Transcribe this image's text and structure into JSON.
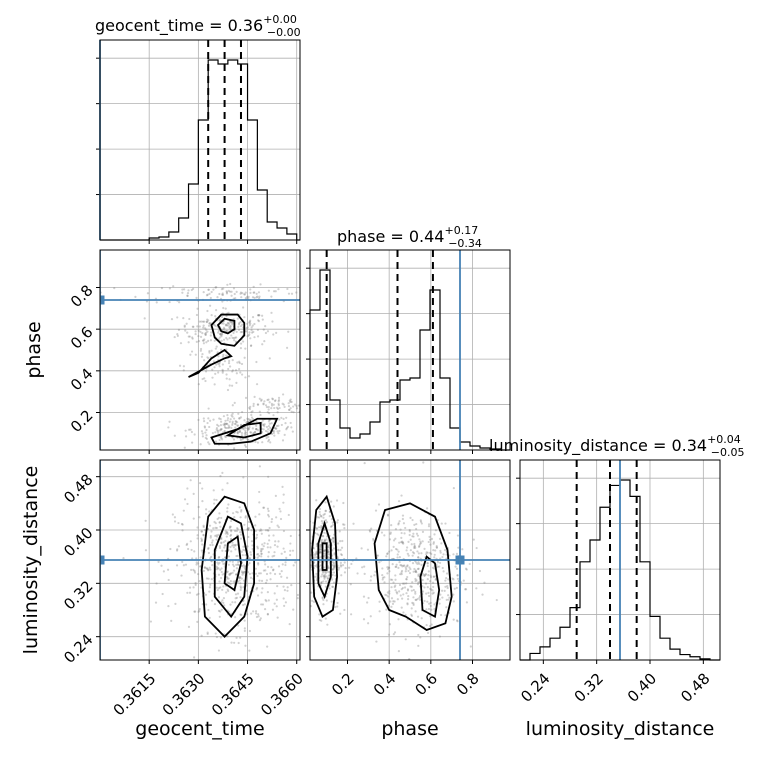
{
  "chart_data": {
    "type": "corner",
    "parameters": [
      "geocent_time",
      "phase",
      "luminosity_distance"
    ],
    "truth": {
      "geocent_time": 0.36,
      "phase": 0.74,
      "luminosity_distance": 0.355
    },
    "titles": [
      {
        "name": "geocent_time",
        "median": "0.36",
        "plus": "+0.00",
        "minus": "−0.00"
      },
      {
        "name": "phase",
        "median": "0.44",
        "plus": "+0.17",
        "minus": "−0.34"
      },
      {
        "name": "luminosity_distance",
        "median": "0.34",
        "plus": "+0.04",
        "minus": "−0.05"
      }
    ],
    "ranges": {
      "geocent_time": [
        0.36,
        0.3661
      ],
      "phase": [
        0.02,
        0.98
      ],
      "luminosity_distance": [
        0.205,
        0.505
      ]
    },
    "ticks": {
      "geocent_time": {
        "values": [
          0.3615,
          0.363,
          0.3645,
          0.366
        ],
        "labels": [
          "0.3615",
          "0.3630",
          "0.3645",
          "0.3660"
        ]
      },
      "phase": {
        "values": [
          0.2,
          0.4,
          0.6,
          0.8
        ],
        "labels": [
          "0.2",
          "0.4",
          "0.6",
          "0.8"
        ]
      },
      "luminosity_distance": {
        "values": [
          0.24,
          0.32,
          0.4,
          0.48
        ],
        "labels": [
          "0.24",
          "0.32",
          "0.40",
          "0.48"
        ]
      }
    },
    "histograms": {
      "geocent_time": {
        "edges": [
          0.36,
          0.3603,
          0.3606,
          0.3609,
          0.3612,
          0.3615,
          0.3618,
          0.3621,
          0.3624,
          0.3627,
          0.363,
          0.3633,
          0.3636,
          0.3639,
          0.3642,
          0.3645,
          0.3648,
          0.3651,
          0.3654,
          0.3657,
          0.366,
          0.3661
        ],
        "counts": [
          0,
          0,
          0,
          0,
          0,
          2,
          3,
          8,
          22,
          56,
          120,
          180,
          176,
          180,
          176,
          120,
          50,
          18,
          12,
          6,
          0
        ],
        "quantiles": [
          0.3633,
          0.3638,
          0.3643
        ]
      },
      "phase": {
        "edges": [
          0.02,
          0.068,
          0.116,
          0.164,
          0.212,
          0.26,
          0.308,
          0.356,
          0.404,
          0.452,
          0.5,
          0.548,
          0.596,
          0.644,
          0.692,
          0.74,
          0.788,
          0.836,
          0.884,
          0.932,
          0.98
        ],
        "counts": [
          140,
          180,
          50,
          22,
          12,
          16,
          28,
          48,
          50,
          70,
          72,
          120,
          160,
          72,
          22,
          8,
          4,
          2,
          1,
          0
        ],
        "quantiles": [
          0.1,
          0.44,
          0.61
        ]
      },
      "luminosity_distance": {
        "edges": [
          0.205,
          0.22,
          0.235,
          0.25,
          0.265,
          0.28,
          0.295,
          0.31,
          0.325,
          0.34,
          0.355,
          0.37,
          0.385,
          0.4,
          0.415,
          0.43,
          0.445,
          0.46,
          0.475,
          0.49,
          0.505
        ],
        "counts": [
          0,
          6,
          12,
          20,
          30,
          48,
          90,
          110,
          140,
          160,
          165,
          150,
          90,
          40,
          20,
          10,
          5,
          3,
          1,
          0
        ],
        "quantiles": [
          0.29,
          0.34,
          0.38
        ]
      }
    },
    "scatter_clusters": {
      "phase_vs_geocent_time": [
        {
          "x": 0.3638,
          "y": 0.6,
          "sx": 0.0007,
          "sy": 0.045,
          "n": 240
        },
        {
          "x": 0.3644,
          "y": 0.12,
          "sx": 0.0008,
          "sy": 0.035,
          "n": 280
        },
        {
          "x": 0.3636,
          "y": 0.42,
          "sx": 0.0005,
          "sy": 0.05,
          "n": 90
        },
        {
          "x": 0.3641,
          "y": 0.77,
          "sx": 0.0014,
          "sy": 0.025,
          "n": 110
        },
        {
          "x": 0.3652,
          "y": 0.24,
          "sx": 0.0006,
          "sy": 0.02,
          "n": 70
        }
      ],
      "luminosity_distance_vs_geocent_time": [
        {
          "x": 0.3641,
          "y": 0.35,
          "sx": 0.0009,
          "sy": 0.05,
          "n": 650
        }
      ],
      "luminosity_distance_vs_phase": [
        {
          "x": 0.09,
          "y": 0.36,
          "sx": 0.045,
          "sy": 0.04,
          "n": 380
        },
        {
          "x": 0.52,
          "y": 0.34,
          "sx": 0.12,
          "sy": 0.045,
          "n": 480
        }
      ]
    },
    "contours": {
      "phase_vs_geocent_time": [
        [
          [
            0.3634,
            0.62
          ],
          [
            0.3637,
            0.67
          ],
          [
            0.3642,
            0.67
          ],
          [
            0.3644,
            0.63
          ],
          [
            0.3644,
            0.57
          ],
          [
            0.3641,
            0.52
          ],
          [
            0.3637,
            0.53
          ],
          [
            0.3635,
            0.56
          ]
        ],
        [
          [
            0.3636,
            0.62
          ],
          [
            0.3638,
            0.65
          ],
          [
            0.3641,
            0.64
          ],
          [
            0.3641,
            0.6
          ],
          [
            0.3639,
            0.58
          ],
          [
            0.3637,
            0.59
          ]
        ],
        [
          [
            0.3634,
            0.43
          ],
          [
            0.3638,
            0.46
          ],
          [
            0.364,
            0.47
          ],
          [
            0.3638,
            0.5
          ],
          [
            0.3634,
            0.46
          ],
          [
            0.363,
            0.39
          ],
          [
            0.3627,
            0.37
          ]
        ],
        [
          [
            0.3634,
            0.08
          ],
          [
            0.3642,
            0.12
          ],
          [
            0.3648,
            0.17
          ],
          [
            0.3654,
            0.17
          ],
          [
            0.3652,
            0.1
          ],
          [
            0.3646,
            0.06
          ],
          [
            0.364,
            0.05
          ],
          [
            0.3635,
            0.05
          ]
        ],
        [
          [
            0.3639,
            0.09
          ],
          [
            0.3644,
            0.14
          ],
          [
            0.3649,
            0.15
          ],
          [
            0.3649,
            0.1
          ],
          [
            0.3644,
            0.08
          ]
        ]
      ],
      "luminosity_distance_vs_geocent_time": [
        [
          [
            0.3632,
            0.27
          ],
          [
            0.3631,
            0.34
          ],
          [
            0.3633,
            0.42
          ],
          [
            0.3638,
            0.45
          ],
          [
            0.3644,
            0.44
          ],
          [
            0.3647,
            0.4
          ],
          [
            0.3647,
            0.32
          ],
          [
            0.3644,
            0.27
          ],
          [
            0.3638,
            0.24
          ]
        ],
        [
          [
            0.3635,
            0.3
          ],
          [
            0.3635,
            0.37
          ],
          [
            0.3639,
            0.42
          ],
          [
            0.3643,
            0.41
          ],
          [
            0.3645,
            0.36
          ],
          [
            0.3644,
            0.3
          ],
          [
            0.364,
            0.27
          ]
        ],
        [
          [
            0.3638,
            0.32
          ],
          [
            0.3639,
            0.38
          ],
          [
            0.3642,
            0.39
          ],
          [
            0.3643,
            0.35
          ],
          [
            0.3641,
            0.31
          ]
        ]
      ],
      "luminosity_distance_vs_phase": [
        [
          [
            0.04,
            0.3
          ],
          [
            0.03,
            0.37
          ],
          [
            0.05,
            0.43
          ],
          [
            0.1,
            0.45
          ],
          [
            0.14,
            0.41
          ],
          [
            0.15,
            0.33
          ],
          [
            0.13,
            0.28
          ],
          [
            0.08,
            0.27
          ]
        ],
        [
          [
            0.06,
            0.32
          ],
          [
            0.06,
            0.38
          ],
          [
            0.09,
            0.41
          ],
          [
            0.12,
            0.38
          ],
          [
            0.12,
            0.33
          ],
          [
            0.09,
            0.3
          ]
        ],
        [
          [
            0.08,
            0.34
          ],
          [
            0.08,
            0.38
          ],
          [
            0.1,
            0.38
          ],
          [
            0.1,
            0.34
          ]
        ],
        [
          [
            0.35,
            0.31
          ],
          [
            0.33,
            0.38
          ],
          [
            0.38,
            0.43
          ],
          [
            0.5,
            0.44
          ],
          [
            0.62,
            0.42
          ],
          [
            0.68,
            0.37
          ],
          [
            0.7,
            0.3
          ],
          [
            0.67,
            0.26
          ],
          [
            0.58,
            0.25
          ],
          [
            0.48,
            0.27
          ],
          [
            0.4,
            0.28
          ]
        ],
        [
          [
            0.56,
            0.28
          ],
          [
            0.55,
            0.33
          ],
          [
            0.58,
            0.36
          ],
          [
            0.62,
            0.35
          ],
          [
            0.64,
            0.31
          ],
          [
            0.62,
            0.27
          ]
        ]
      ]
    }
  }
}
